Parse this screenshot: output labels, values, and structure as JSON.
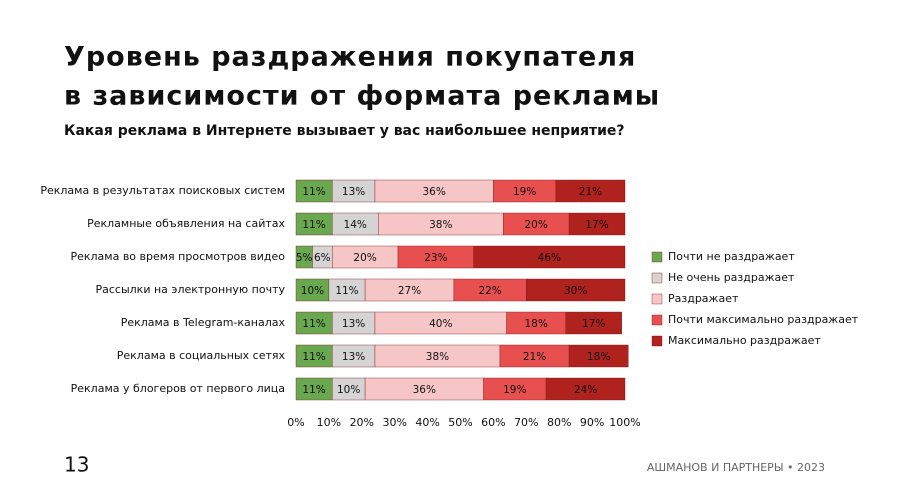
{
  "chart_data": {
    "type": "stacked-barh",
    "title": "Уровень раздражения покупателя в зависимости от формата рекламы",
    "subtitle": "Какая реклама в Интернете вызывает у вас наибольшее неприятие?",
    "categories": [
      "Реклама в результатах поисковых систем",
      "Рекламные объявления на сайтах",
      "Реклама во время просмотров видео",
      "Рассылки на электронную почту",
      "Реклама в Telegram-каналах",
      "Реклама в социальных сетях",
      "Реклама у блогеров от первого лица"
    ],
    "series": [
      {
        "name": "Почти не раздражает",
        "color": "#6aa84f",
        "values": [
          11,
          11,
          5,
          10,
          11,
          11,
          11
        ],
        "value_labels": [
          "11%",
          "11%",
          "5%",
          "10%",
          "11%",
          "11%",
          "11%"
        ]
      },
      {
        "name": "Не очень раздражает",
        "color": "#d4d4d4",
        "values": [
          13,
          14,
          6,
          11,
          13,
          13,
          10
        ],
        "value_labels": [
          "13%",
          "14%",
          "6%",
          "11%",
          "13%",
          "13%",
          "10%"
        ]
      },
      {
        "name": "Раздражает",
        "color": "#f6c6c6",
        "values": [
          36,
          38,
          20,
          27,
          40,
          38,
          36
        ],
        "value_labels": [
          "36%",
          "38%",
          "20%",
          "27%",
          "40%",
          "38%",
          "36%"
        ]
      },
      {
        "name": "Почти максимально раздражает",
        "color": "#e85050",
        "values": [
          19,
          20,
          23,
          22,
          18,
          21,
          19
        ],
        "value_labels": [
          "19%",
          "20%",
          "23%",
          "22%",
          "18%",
          "21%",
          "19%"
        ]
      },
      {
        "name": "Максимально раздражает",
        "color": "#b0221e",
        "values": [
          21,
          17,
          46,
          30,
          17,
          18,
          24
        ],
        "value_labels": [
          "21%",
          "17%",
          "46%",
          "30%",
          "17%",
          "18%",
          "24%"
        ]
      }
    ],
    "xlim": [
      0,
      100
    ],
    "xticks": [
      {
        "value": 0,
        "label": "0%"
      },
      {
        "value": 10,
        "label": "10%"
      },
      {
        "value": 20,
        "label": "20%"
      },
      {
        "value": 30,
        "label": "30%"
      },
      {
        "value": 40,
        "label": "40%"
      },
      {
        "value": 50,
        "label": "50%"
      },
      {
        "value": 60,
        "label": "60%"
      },
      {
        "value": 70,
        "label": "70%"
      },
      {
        "value": 80,
        "label": "80%"
      },
      {
        "value": 90,
        "label": "90%"
      },
      {
        "value": 100,
        "label": "100%"
      }
    ],
    "legend": "right"
  },
  "page_number": "13",
  "footer": "АШМАНОВ И ПАРТНЕРЫ • 2023"
}
